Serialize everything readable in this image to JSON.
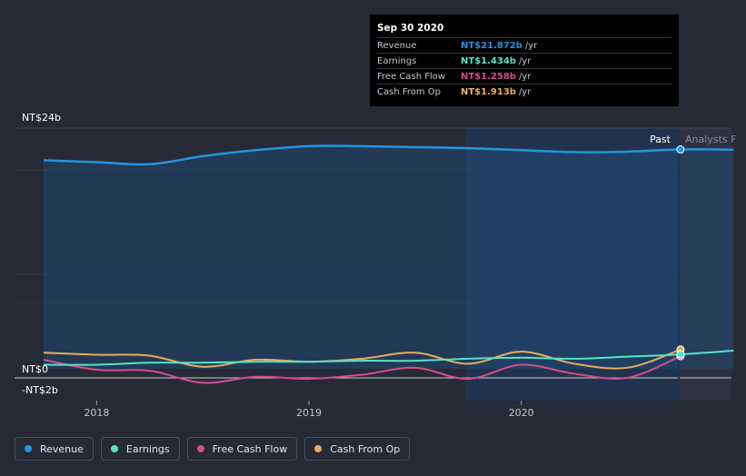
{
  "chart_data": {
    "type": "line",
    "y_unit": "NT$ billions",
    "ylim": [
      -2,
      24
    ],
    "x_range": [
      2017.75,
      2020.99
    ],
    "xticks": [
      2018,
      2019,
      2020
    ],
    "xtick_labels": [
      "2018",
      "2019",
      "2020"
    ],
    "ytick_labels": [
      {
        "value": 24,
        "label": "NT$24b"
      },
      {
        "value": 0,
        "label": "NT$0"
      },
      {
        "value": -2,
        "label": "-NT$2b"
      }
    ],
    "past_label": "Past",
    "forecast_label": "Analysts F",
    "series": [
      {
        "name": "Revenue",
        "color": "#2394df",
        "x": [
          2017.75,
          2018.0,
          2018.25,
          2018.5,
          2018.75,
          2019.0,
          2019.25,
          2019.5,
          2019.75,
          2020.0,
          2020.25,
          2020.5,
          2020.75,
          2021.0
        ],
        "y": [
          20.8,
          20.6,
          20.4,
          21.2,
          21.8,
          22.2,
          22.2,
          22.1,
          22.0,
          21.8,
          21.6,
          21.65,
          21.87,
          21.85
        ]
      },
      {
        "name": "Earnings",
        "color": "#58e1c8",
        "x": [
          2017.75,
          2018.0,
          2018.25,
          2018.5,
          2018.75,
          2019.0,
          2019.25,
          2019.5,
          2019.75,
          2020.0,
          2020.25,
          2020.5,
          2020.75,
          2021.0
        ],
        "y": [
          0.4,
          0.4,
          0.6,
          0.6,
          0.7,
          0.7,
          0.8,
          0.8,
          1.0,
          1.1,
          1.0,
          1.2,
          1.434,
          1.8
        ]
      },
      {
        "name": "Free Cash Flow",
        "color": "#d44d8e",
        "x": [
          2017.75,
          2018.0,
          2018.25,
          2018.5,
          2018.75,
          2019.0,
          2019.25,
          2019.5,
          2019.75,
          2020.0,
          2020.25,
          2020.5,
          2020.75
        ],
        "y": [
          0.9,
          -0.1,
          -0.2,
          -1.4,
          -0.8,
          -1.0,
          -0.6,
          0.1,
          -1.0,
          0.4,
          -0.5,
          -0.9,
          1.258
        ]
      },
      {
        "name": "Cash From Op",
        "color": "#e8ac5a",
        "x": [
          2017.75,
          2018.0,
          2018.25,
          2018.5,
          2018.75,
          2019.0,
          2019.25,
          2019.5,
          2019.75,
          2020.0,
          2020.25,
          2020.5,
          2020.75
        ],
        "y": [
          1.6,
          1.4,
          1.3,
          0.2,
          0.9,
          0.7,
          1.0,
          1.6,
          0.5,
          1.7,
          0.5,
          0.1,
          1.913
        ]
      }
    ]
  },
  "tooltip": {
    "date": "Sep 30 2020",
    "rows": [
      {
        "label": "Revenue",
        "value": "NT$21.872b",
        "unit": "/yr",
        "color": "#2394df"
      },
      {
        "label": "Earnings",
        "value": "NT$1.434b",
        "unit": "/yr",
        "color": "#58e1c8"
      },
      {
        "label": "Free Cash Flow",
        "value": "NT$1.258b",
        "unit": "/yr",
        "color": "#d44d8e"
      },
      {
        "label": "Cash From Op",
        "value": "NT$1.913b",
        "unit": "/yr",
        "color": "#e8ac5a"
      }
    ]
  },
  "legend": [
    {
      "label": "Revenue",
      "color": "#2394df"
    },
    {
      "label": "Earnings",
      "color": "#58e1c8"
    },
    {
      "label": "Free Cash Flow",
      "color": "#d44d8e"
    },
    {
      "label": "Cash From Op",
      "color": "#e8ac5a"
    }
  ]
}
